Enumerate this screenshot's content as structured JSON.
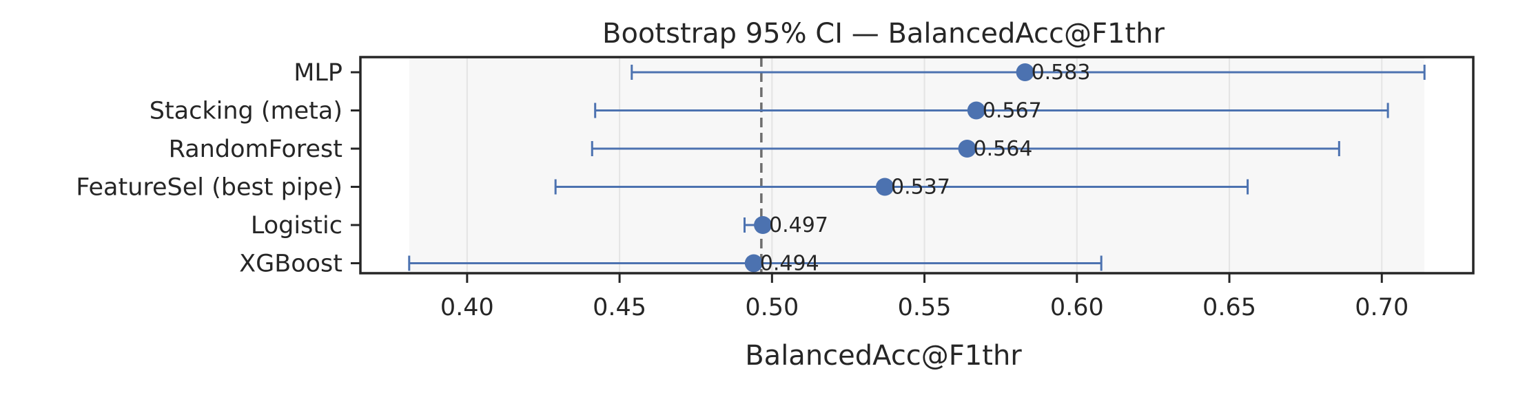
{
  "chart_data": {
    "type": "scatter",
    "orientation": "horizontal",
    "title": "Bootstrap 95% CI — BalancedAcc@F1thr",
    "xlabel": "BalancedAcc@F1thr",
    "ylabel": "",
    "xlim": [
      0.365,
      0.73
    ],
    "x_ticks": [
      "0.40",
      "0.45",
      "0.50",
      "0.55",
      "0.60",
      "0.65",
      "0.70"
    ],
    "x_tick_values": [
      0.4,
      0.45,
      0.5,
      0.55,
      0.6,
      0.65,
      0.7
    ],
    "reference_line": 0.4965,
    "grid": "x",
    "categories": [
      "MLP",
      "Stacking (meta)",
      "RandomForest",
      "FeatureSel (best pipe)",
      "Logistic",
      "XGBoost"
    ],
    "series": [
      {
        "values": [
          0.583,
          0.567,
          0.564,
          0.537,
          0.497,
          0.494
        ],
        "value_labels": [
          "0.583",
          "0.567",
          "0.564",
          "0.537",
          "0.497",
          "0.494"
        ],
        "ci_low": [
          0.454,
          0.442,
          0.441,
          0.429,
          0.491,
          0.381
        ],
        "ci_high": [
          0.714,
          0.702,
          0.686,
          0.656,
          0.497,
          0.608
        ]
      }
    ],
    "colors": {
      "series": "#4c72b0",
      "reference_line": "#6e6e6e",
      "band": "#f7f7f7",
      "grid": "#e4e4e4",
      "axis": "#262626"
    }
  }
}
